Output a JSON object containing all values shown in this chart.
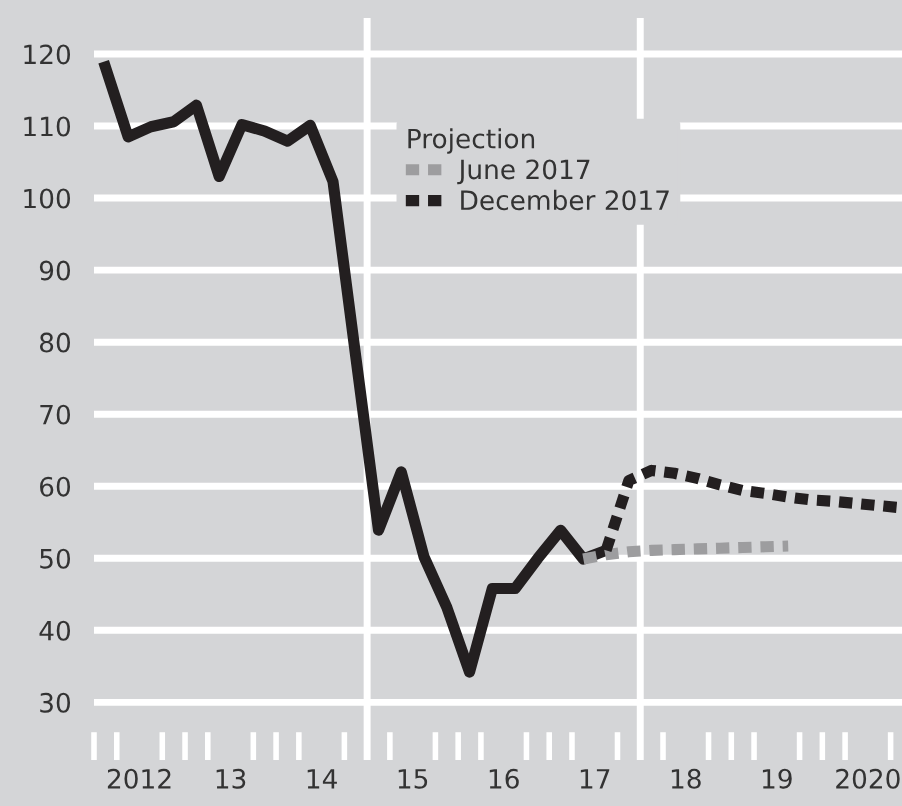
{
  "chart_data": {
    "type": "line",
    "legend_title": "Projection",
    "series": [
      {
        "color": "#231f20",
        "line_style": "solid",
        "x": [
          2011.625,
          2011.875,
          2012.125,
          2012.375,
          2012.625,
          2012.875,
          2013.125,
          2013.375,
          2013.625,
          2013.875,
          2014.125,
          2014.375,
          2014.625,
          2014.875,
          2015.125,
          2015.375,
          2015.625,
          2015.875,
          2016.125,
          2016.375,
          2016.625,
          2016.875,
          2017.125
        ],
        "values": [
          118.2,
          108.5,
          109.9,
          110.6,
          112.9,
          103,
          110.2,
          109.3,
          107.9,
          110.1,
          102.3,
          78,
          53.9,
          62,
          50.2,
          43.2,
          34.2,
          45.8,
          45.8,
          50,
          53.9,
          49.9,
          51.1
        ]
      },
      {
        "name": "June 2017",
        "color": "#9d9d9f",
        "line_style": "dotted",
        "x": [
          2016.875,
          2017.125,
          2017.375,
          2017.625,
          2017.875,
          2018.125,
          2018.375,
          2018.625,
          2018.875,
          2019.125
        ],
        "values": [
          49.9,
          50.5,
          50.9,
          51.1,
          51.2,
          51.3,
          51.4,
          51.5,
          51.6,
          51.7
        ]
      },
      {
        "name": "December 2017",
        "color": "#231f20",
        "line_style": "dotted",
        "x": [
          2017.125,
          2017.375,
          2017.625,
          2017.875,
          2018.125,
          2018.375,
          2018.625,
          2018.875,
          2019.125,
          2019.375,
          2019.625,
          2019.875,
          2020.125,
          2020.375
        ],
        "values": [
          51.1,
          60.8,
          62.2,
          61.8,
          61.1,
          60.2,
          59.4,
          59,
          58.5,
          58.1,
          57.9,
          57.6,
          57.3,
          57
        ]
      }
    ],
    "xlim": [
      2011.5,
      2020.375
    ],
    "xticks": [
      {
        "value": 2011.5,
        "label": null
      },
      {
        "value": 2011.75,
        "label": null
      },
      2012,
      {
        "value": 2012.25,
        "label": null
      },
      {
        "value": 2012.5,
        "label": null
      },
      {
        "value": 2012.75,
        "label": null
      },
      {
        "value": 2013,
        "label": "13"
      },
      {
        "value": 2013.25,
        "label": null
      },
      {
        "value": 2013.5,
        "label": null
      },
      {
        "value": 2013.75,
        "label": null
      },
      {
        "value": 2014,
        "label": "14"
      },
      {
        "value": 2014.25,
        "label": null
      },
      {
        "value": 2014.5,
        "label": null
      },
      {
        "value": 2014.75,
        "label": null
      },
      {
        "value": 2015,
        "label": "15"
      },
      {
        "value": 2015.25,
        "label": null
      },
      {
        "value": 2015.5,
        "label": null
      },
      {
        "value": 2015.75,
        "label": null
      },
      {
        "value": 2016,
        "label": "16"
      },
      {
        "value": 2016.25,
        "label": null
      },
      {
        "value": 2016.5,
        "label": null
      },
      {
        "value": 2016.75,
        "label": null
      },
      {
        "value": 2017,
        "label": "17"
      },
      {
        "value": 2017.25,
        "label": null
      },
      {
        "value": 2017.5,
        "label": null
      },
      {
        "value": 2017.75,
        "label": null
      },
      {
        "value": 2018,
        "label": "18"
      },
      {
        "value": 2018.25,
        "label": null
      },
      {
        "value": 2018.5,
        "label": null
      },
      {
        "value": 2018.75,
        "label": null
      },
      {
        "value": 2019,
        "label": "19"
      },
      {
        "value": 2019.25,
        "label": null
      },
      {
        "value": 2019.5,
        "label": null
      },
      {
        "value": 2019.75,
        "label": null
      },
      2020,
      {
        "value": 2020.25,
        "label": null
      }
    ],
    "ylim": [
      22,
      125
    ],
    "yticks": [
      30,
      40,
      50,
      60,
      70,
      80,
      90,
      100,
      110,
      120
    ],
    "grid": "y",
    "ref_lines": [
      {
        "axis": "x",
        "value": 2014.5,
        "color": "#ffffff"
      },
      {
        "axis": "x",
        "value": 2017.5,
        "color": "#ffffff"
      }
    ],
    "legend": "top",
    "marker": "none"
  }
}
